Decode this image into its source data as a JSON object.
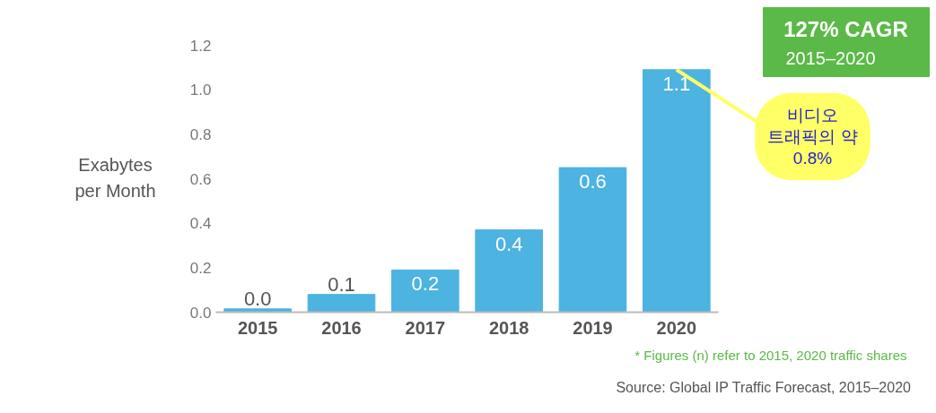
{
  "chart_data": {
    "type": "bar",
    "ylabel": "Exabytes per Month",
    "categories": [
      "2015",
      "2016",
      "2017",
      "2018",
      "2019",
      "2020"
    ],
    "values": [
      0.015,
      0.08,
      0.19,
      0.37,
      0.65,
      1.09
    ],
    "value_labels": [
      "0.0",
      "0.1",
      "0.2",
      "0.4",
      "0.6",
      "1.1"
    ],
    "color": "#4db3e0",
    "ylim": [
      0,
      1.2
    ],
    "yticks": [
      {
        "value": 0,
        "label": "0.0"
      },
      {
        "value": 0.2,
        "label": "0.2"
      },
      {
        "value": 0.4,
        "label": "0.4"
      },
      {
        "value": 0.6,
        "label": "0.6"
      },
      {
        "value": 0.8,
        "label": "0.8"
      },
      {
        "value": 1.0,
        "label": "1.0"
      },
      {
        "value": 1.2,
        "label": "1.2"
      }
    ],
    "grid": false,
    "annotations": [
      "127% CAGR",
      "2015–2020",
      {
        "text": "비디오\n트래픽의 약\n0.8%",
        "x": "2020",
        "y": 1.09
      },
      "* Figures (n) refer to 2015, 2020 traffic shares",
      "Source: Global IP Traffic Forecast, 2015–2020"
    ]
  }
}
